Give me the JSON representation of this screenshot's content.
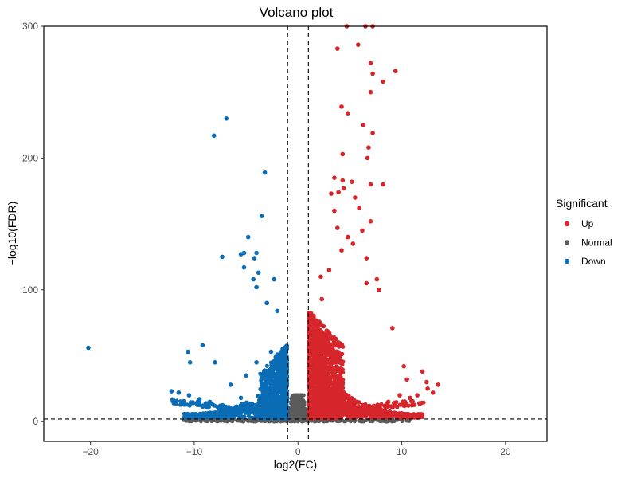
{
  "chart_data": {
    "type": "scatter",
    "title": "Volcano plot",
    "xlabel": "log2(FC)",
    "ylabel": "−log10(FDR)",
    "xlim": [
      -24.5,
      24
    ],
    "ylim": [
      -15,
      300
    ],
    "x_ticks": [
      -20,
      -10,
      0,
      10,
      20
    ],
    "x_tick_labels": [
      "−20",
      "−10",
      "0",
      "10",
      "20"
    ],
    "y_ticks": [
      0,
      100,
      200,
      300
    ],
    "y_tick_labels": [
      "0",
      "100",
      "200",
      "300"
    ],
    "grid": false,
    "legend_position": "right",
    "thresholds": {
      "log2fc": [
        -1,
        1
      ],
      "neg_log10_fdr": 2
    },
    "legend": {
      "title": "Significant",
      "entries": [
        {
          "label": "Up",
          "color": "#d6262b"
        },
        {
          "label": "Normal",
          "color": "#5a5a5a"
        },
        {
          "label": "Down",
          "color": "#0a6cb5"
        }
      ]
    },
    "series": [
      {
        "name": "Up",
        "color": "#d6262b",
        "points": [
          [
            4.7,
            300
          ],
          [
            6.5,
            300
          ],
          [
            7.2,
            300
          ],
          [
            3.8,
            283
          ],
          [
            5.8,
            286
          ],
          [
            7.0,
            272
          ],
          [
            7.2,
            264
          ],
          [
            8.2,
            258
          ],
          [
            9.4,
            266
          ],
          [
            7.0,
            250
          ],
          [
            4.2,
            239
          ],
          [
            4.8,
            234
          ],
          [
            6.3,
            225
          ],
          [
            6.8,
            208
          ],
          [
            7.2,
            219
          ],
          [
            4.3,
            203
          ],
          [
            6.7,
            200
          ],
          [
            3.5,
            185
          ],
          [
            5.2,
            182
          ],
          [
            3.2,
            173
          ],
          [
            3.9,
            174
          ],
          [
            4.4,
            177
          ],
          [
            4.3,
            183
          ],
          [
            5.5,
            170
          ],
          [
            7.0,
            180
          ],
          [
            8.2,
            180
          ],
          [
            5.9,
            162
          ],
          [
            3.5,
            160
          ],
          [
            7.0,
            152
          ],
          [
            6.2,
            145
          ],
          [
            5.3,
            135
          ],
          [
            4.2,
            130
          ],
          [
            6.6,
            124
          ],
          [
            6.6,
            105
          ],
          [
            7.6,
            108
          ],
          [
            7.8,
            100
          ],
          [
            9.1,
            71
          ],
          [
            10.2,
            42
          ],
          [
            10.5,
            32
          ],
          [
            12.0,
            38
          ],
          [
            12.4,
            30
          ],
          [
            13.5,
            28
          ],
          [
            13.0,
            22
          ],
          [
            12.5,
            25
          ],
          [
            11.5,
            20
          ],
          [
            10.8,
            18
          ],
          [
            9.8,
            20
          ],
          [
            8.7,
            15
          ],
          [
            7.8,
            12
          ],
          [
            2.3,
            93
          ],
          [
            3.0,
            115
          ],
          [
            3.8,
            147
          ],
          [
            4.8,
            140
          ],
          [
            2.2,
            110
          ]
        ]
      },
      {
        "name": "Down",
        "color": "#0a6cb5",
        "points": [
          [
            -20.2,
            56
          ],
          [
            -6.9,
            230
          ],
          [
            -8.1,
            217
          ],
          [
            -3.2,
            189
          ],
          [
            -3.5,
            156
          ],
          [
            -4.8,
            140
          ],
          [
            -5.2,
            128
          ],
          [
            -4.0,
            128
          ],
          [
            -7.3,
            125
          ],
          [
            -5.5,
            127
          ],
          [
            -4.2,
            124
          ],
          [
            -5.2,
            117
          ],
          [
            -3.8,
            113
          ],
          [
            -4.3,
            108
          ],
          [
            -2.3,
            108
          ],
          [
            -4.0,
            102
          ],
          [
            -3.0,
            90
          ],
          [
            -10.6,
            53
          ],
          [
            -9.2,
            58
          ],
          [
            -10.4,
            45
          ],
          [
            -8.0,
            45
          ],
          [
            -12.2,
            23
          ],
          [
            -11.5,
            22
          ],
          [
            -10.5,
            20
          ],
          [
            -9.5,
            17
          ],
          [
            -8.5,
            15
          ],
          [
            -7.5,
            12
          ],
          [
            -6.2,
            9
          ],
          [
            -5.5,
            18
          ],
          [
            -6.5,
            28
          ],
          [
            -5.0,
            35
          ],
          [
            -4.0,
            45
          ],
          [
            -2.6,
            53
          ],
          [
            -2.0,
            84
          ]
        ]
      }
    ]
  }
}
